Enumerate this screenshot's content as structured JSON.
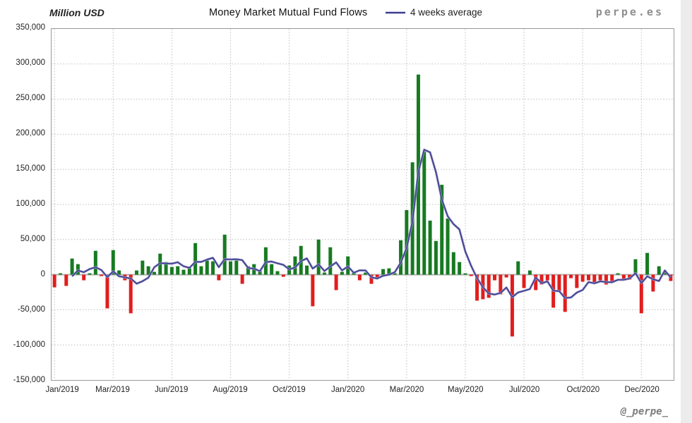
{
  "header": {
    "units_label": "Million USD",
    "title": "Money Market Mutual Fund Flows",
    "legend_label": "4 weeks average"
  },
  "watermark": {
    "site": "perpe.es",
    "handle": "@_perpe_"
  },
  "chart_data": {
    "type": "bar",
    "title": "Money Market Mutual Fund Flows",
    "ylabel": "Million USD",
    "frequency": "weekly",
    "x_range": [
      "Jan/2019",
      "Dec/2020"
    ],
    "x_tick_labels": [
      "Jan/2019",
      "Mar/2019",
      "Jun/2019",
      "Aug/2019",
      "Oct/2019",
      "Jan/2020",
      "Mar/2020",
      "May/2020",
      "Jul/2020",
      "Oct/2020",
      "Dec/2020"
    ],
    "x_tick_every": 10,
    "ylim": [
      -150000,
      350000
    ],
    "y_tick_values": [
      350000,
      300000,
      250000,
      200000,
      150000,
      100000,
      50000,
      0,
      -50000,
      -100000,
      -150000
    ],
    "y_tick_labels": [
      "350,000",
      "300,000",
      "250,000",
      "200,000",
      "150,000",
      "100,000",
      "50,000",
      "0",
      "-50,000",
      "-100,000",
      "-150,000"
    ],
    "grid": "dotted",
    "legend_position": "top",
    "colors": {
      "positive_bar": "#177A22",
      "negative_bar": "#E21D1D",
      "average_line": "#3D3D8F",
      "average_line_halo": "#9A9AC8",
      "zero_line": "#B2B2B2",
      "gridline": "#BDBDBD",
      "border": "#9A9A9A"
    },
    "series": [
      {
        "name": "Weekly money market mutual fund flows (Million USD)",
        "type": "bar",
        "values": [
          -18000,
          2000,
          -16000,
          23000,
          15000,
          -8000,
          2000,
          34000,
          -2000,
          -48000,
          35000,
          6000,
          -8000,
          -55000,
          6000,
          20000,
          12000,
          4000,
          30000,
          18000,
          11000,
          12000,
          7000,
          9000,
          45000,
          12000,
          20000,
          19000,
          -8000,
          57000,
          19000,
          20000,
          -13000,
          12000,
          15000,
          6000,
          39000,
          15000,
          5000,
          -3000,
          13000,
          26000,
          41000,
          13000,
          -45000,
          50000,
          3000,
          39000,
          -22000,
          4000,
          26000,
          3000,
          -8000,
          3000,
          -13000,
          -4000,
          8000,
          9000,
          2000,
          49000,
          92000,
          160000,
          285000,
          175000,
          77000,
          48000,
          128000,
          80000,
          32000,
          18000,
          2000,
          -2000,
          -37000,
          -35000,
          -33000,
          -8000,
          -28000,
          -4000,
          -88000,
          19000,
          -19000,
          6000,
          -22000,
          -14000,
          -8000,
          -47000,
          -25000,
          -53000,
          -5000,
          -19000,
          -10000,
          -8000,
          -12000,
          -8000,
          -14000,
          -9000,
          2000,
          -8000,
          -7000,
          22000,
          -55000,
          31000,
          -24000,
          12000,
          5000,
          -9000
        ]
      },
      {
        "name": "4 weeks average",
        "type": "line",
        "derived": "trailing 4-week mean of weekly flows"
      }
    ]
  }
}
